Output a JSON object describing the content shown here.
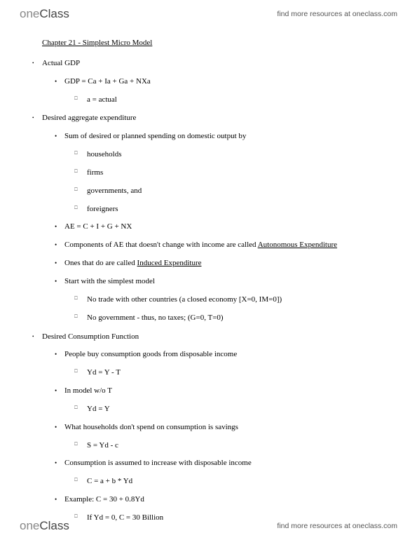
{
  "brand": {
    "part1": "one",
    "part2": "Class"
  },
  "resources_text": "find more resources at oneclass.com",
  "chapter_title": "Chapter 21 - Simplest Micro Model",
  "s1": {
    "title": "Actual GDP",
    "eq": "GDP = Ca + Ia + Ga + NXa",
    "note": "a = actual"
  },
  "s2": {
    "title": "Desired aggregate expenditure",
    "p1": "Sum of desired or planned spending on domestic output by",
    "i1": "households",
    "i2": "firms",
    "i3": "governments, and",
    "i4": "foreigners",
    "eq": "AE = C + I + G + NX",
    "auto_pre": "Components of AE that doesn't change with income are called ",
    "auto_u": "Autonomous Expenditure",
    "ind_pre": "Ones that do are called ",
    "ind_u": "Induced Expenditure",
    "simplest": "Start with the simplest model",
    "sm1": "No trade with other countries (a closed economy [X=0, IM=0])",
    "sm2": "No government - thus, no taxes; (G=0, T=0)"
  },
  "s3": {
    "title": "Desired Consumption Function",
    "p1": "People buy consumption goods from disposable income",
    "e1": "Yd = Y - T",
    "p2": "In model w/o T",
    "e2": "Yd = Y",
    "p3": "What households don't spend on consumption is savings",
    "e3": "S = Yd - c",
    "p4": "Consumption is assumed to increase with disposable income",
    "e4": "C = a + b * Yd",
    "p5": "Example: C = 30 + 0.8Yd",
    "e5": "If Yd = 0, C = 30 Billion"
  }
}
